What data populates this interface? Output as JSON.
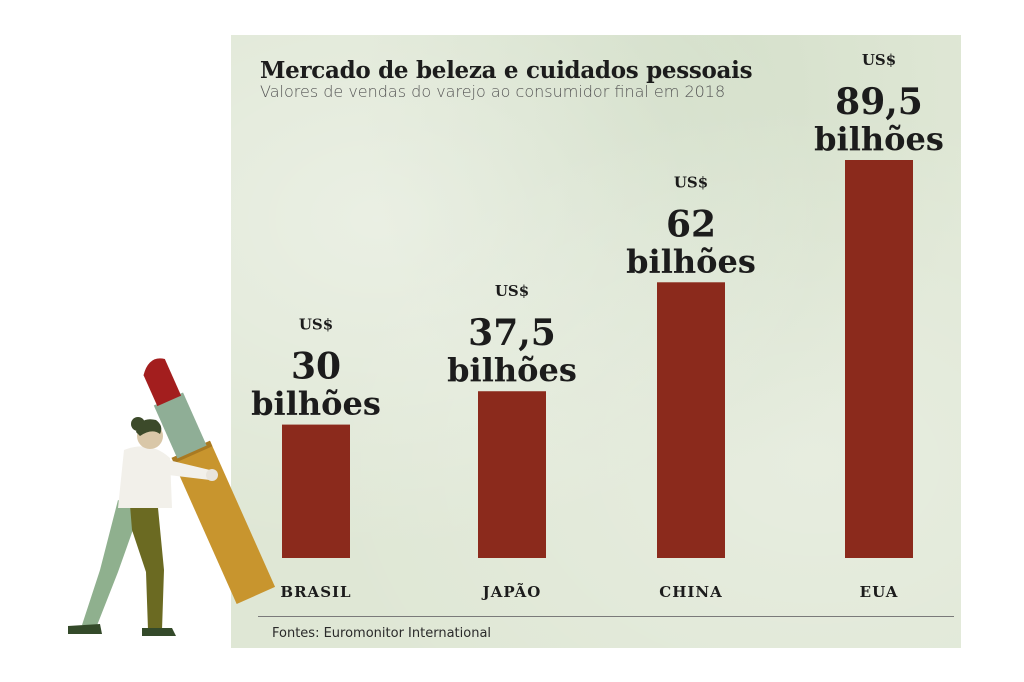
{
  "chart_data": {
    "type": "bar",
    "title": "Mercado de beleza e cuidados pessoais",
    "subtitle": "Valores de vendas do varejo ao consumidor final em 2018",
    "categories": [
      "BRASIL",
      "JAPÃO",
      "CHINA",
      "EUA"
    ],
    "values": [
      30,
      37.5,
      62,
      89.5
    ],
    "value_labels": [
      {
        "currency": "US$",
        "number": "30",
        "unit": "bilhões"
      },
      {
        "currency": "US$",
        "number": "37,5",
        "unit": "bilhões"
      },
      {
        "currency": "US$",
        "number": "62",
        "unit": "bilhões"
      },
      {
        "currency": "US$",
        "number": "89,5",
        "unit": "bilhões"
      }
    ],
    "ylim": [
      0,
      89.5
    ],
    "bar_color": "#8b2a1c",
    "grid": false
  },
  "source": "Fontes: Euromonitor International",
  "colors": {
    "panel": "#dfe7d5",
    "bar": "#8b2a1c",
    "text": "#1c1c1c"
  },
  "illustration": {
    "icon": "woman-pushing-lipstick-illustration"
  }
}
